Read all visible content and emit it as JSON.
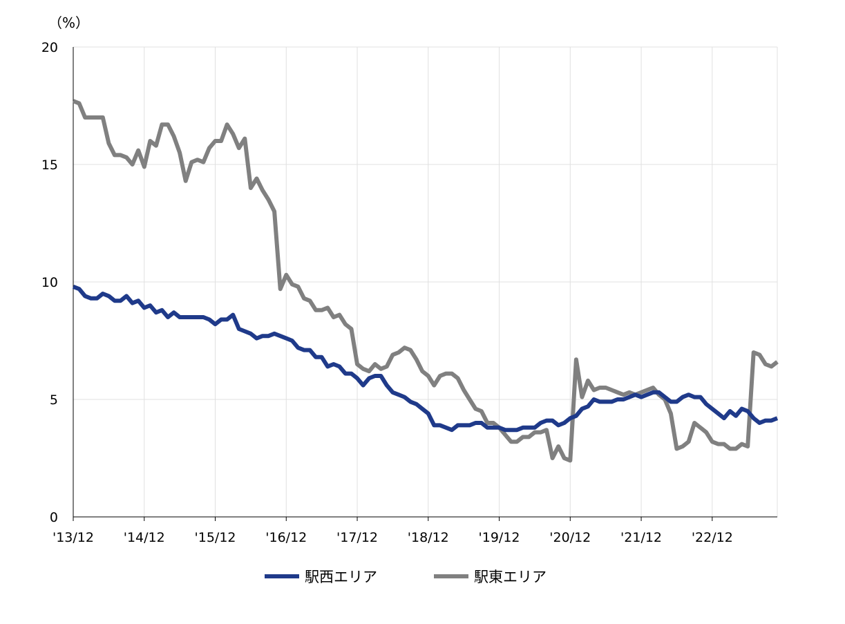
{
  "chart_data": {
    "type": "line",
    "unit_label": "（%）",
    "ylim": [
      0,
      20
    ],
    "y_ticks": [
      0,
      5,
      10,
      15,
      20
    ],
    "x_tick_labels": [
      "'13/12",
      "'14/12",
      "'15/12",
      "'16/12",
      "'17/12",
      "'18/12",
      "'19/12",
      "'20/12",
      "'21/12",
      "'22/12"
    ],
    "x_range": [
      0,
      119
    ],
    "x_tick_positions": [
      0,
      12,
      24,
      36,
      48,
      60,
      72,
      84,
      96,
      108
    ],
    "grid": true,
    "legend_position": "bottom",
    "series": [
      {
        "name": "駅西エリア",
        "color": "#1f3a8a",
        "values": [
          9.8,
          9.7,
          9.4,
          9.3,
          9.3,
          9.5,
          9.4,
          9.2,
          9.2,
          9.4,
          9.1,
          9.2,
          8.9,
          9.0,
          8.7,
          8.8,
          8.5,
          8.7,
          8.5,
          8.5,
          8.5,
          8.5,
          8.5,
          8.4,
          8.2,
          8.4,
          8.4,
          8.6,
          8.0,
          7.9,
          7.8,
          7.6,
          7.7,
          7.7,
          7.8,
          7.7,
          7.6,
          7.5,
          7.2,
          7.1,
          7.1,
          6.8,
          6.8,
          6.4,
          6.5,
          6.4,
          6.1,
          6.1,
          5.9,
          5.6,
          5.9,
          6.0,
          6.0,
          5.6,
          5.3,
          5.2,
          5.1,
          4.9,
          4.8,
          4.6,
          4.4,
          3.9,
          3.9,
          3.8,
          3.7,
          3.9,
          3.9,
          3.9,
          4.0,
          4.0,
          3.8,
          3.8,
          3.8,
          3.7,
          3.7,
          3.7,
          3.8,
          3.8,
          3.8,
          4.0,
          4.1,
          4.1,
          3.9,
          4.0,
          4.2,
          4.3,
          4.6,
          4.7,
          5.0,
          4.9,
          4.9,
          4.9,
          5.0,
          5.0,
          5.1,
          5.2,
          5.1,
          5.2,
          5.3,
          5.3,
          5.1,
          4.9,
          4.9,
          5.1,
          5.2,
          5.1,
          5.1,
          4.8,
          4.6,
          4.4,
          4.2,
          4.5,
          4.3,
          4.6,
          4.5,
          4.2,
          4.0,
          4.1,
          4.1,
          4.2
        ]
      },
      {
        "name": "駅東エリア",
        "color": "#808080",
        "values": [
          17.7,
          17.6,
          17.0,
          17.0,
          17.0,
          17.0,
          15.9,
          15.4,
          15.4,
          15.3,
          15.0,
          15.6,
          14.9,
          16.0,
          15.8,
          16.7,
          16.7,
          16.2,
          15.5,
          14.3,
          15.1,
          15.2,
          15.1,
          15.7,
          16.0,
          16.0,
          16.7,
          16.3,
          15.7,
          16.1,
          14.0,
          14.4,
          13.9,
          13.5,
          13.0,
          9.7,
          10.3,
          9.9,
          9.8,
          9.3,
          9.2,
          8.8,
          8.8,
          8.9,
          8.5,
          8.6,
          8.2,
          8.0,
          6.5,
          6.3,
          6.2,
          6.5,
          6.3,
          6.4,
          6.9,
          7.0,
          7.2,
          7.1,
          6.7,
          6.2,
          6.0,
          5.6,
          6.0,
          6.1,
          6.1,
          5.9,
          5.4,
          5.0,
          4.6,
          4.5,
          4.0,
          4.0,
          3.8,
          3.5,
          3.2,
          3.2,
          3.4,
          3.4,
          3.6,
          3.6,
          3.7,
          2.5,
          3.0,
          2.5,
          2.4,
          6.7,
          5.1,
          5.8,
          5.4,
          5.5,
          5.5,
          5.4,
          5.3,
          5.2,
          5.3,
          5.2,
          5.3,
          5.4,
          5.5,
          5.2,
          5.0,
          4.4,
          2.9,
          3.0,
          3.2,
          4.0,
          3.8,
          3.6,
          3.2,
          3.1,
          3.1,
          2.9,
          2.9,
          3.1,
          3.0,
          7.0,
          6.9,
          6.5,
          6.4,
          6.6
        ]
      }
    ]
  }
}
